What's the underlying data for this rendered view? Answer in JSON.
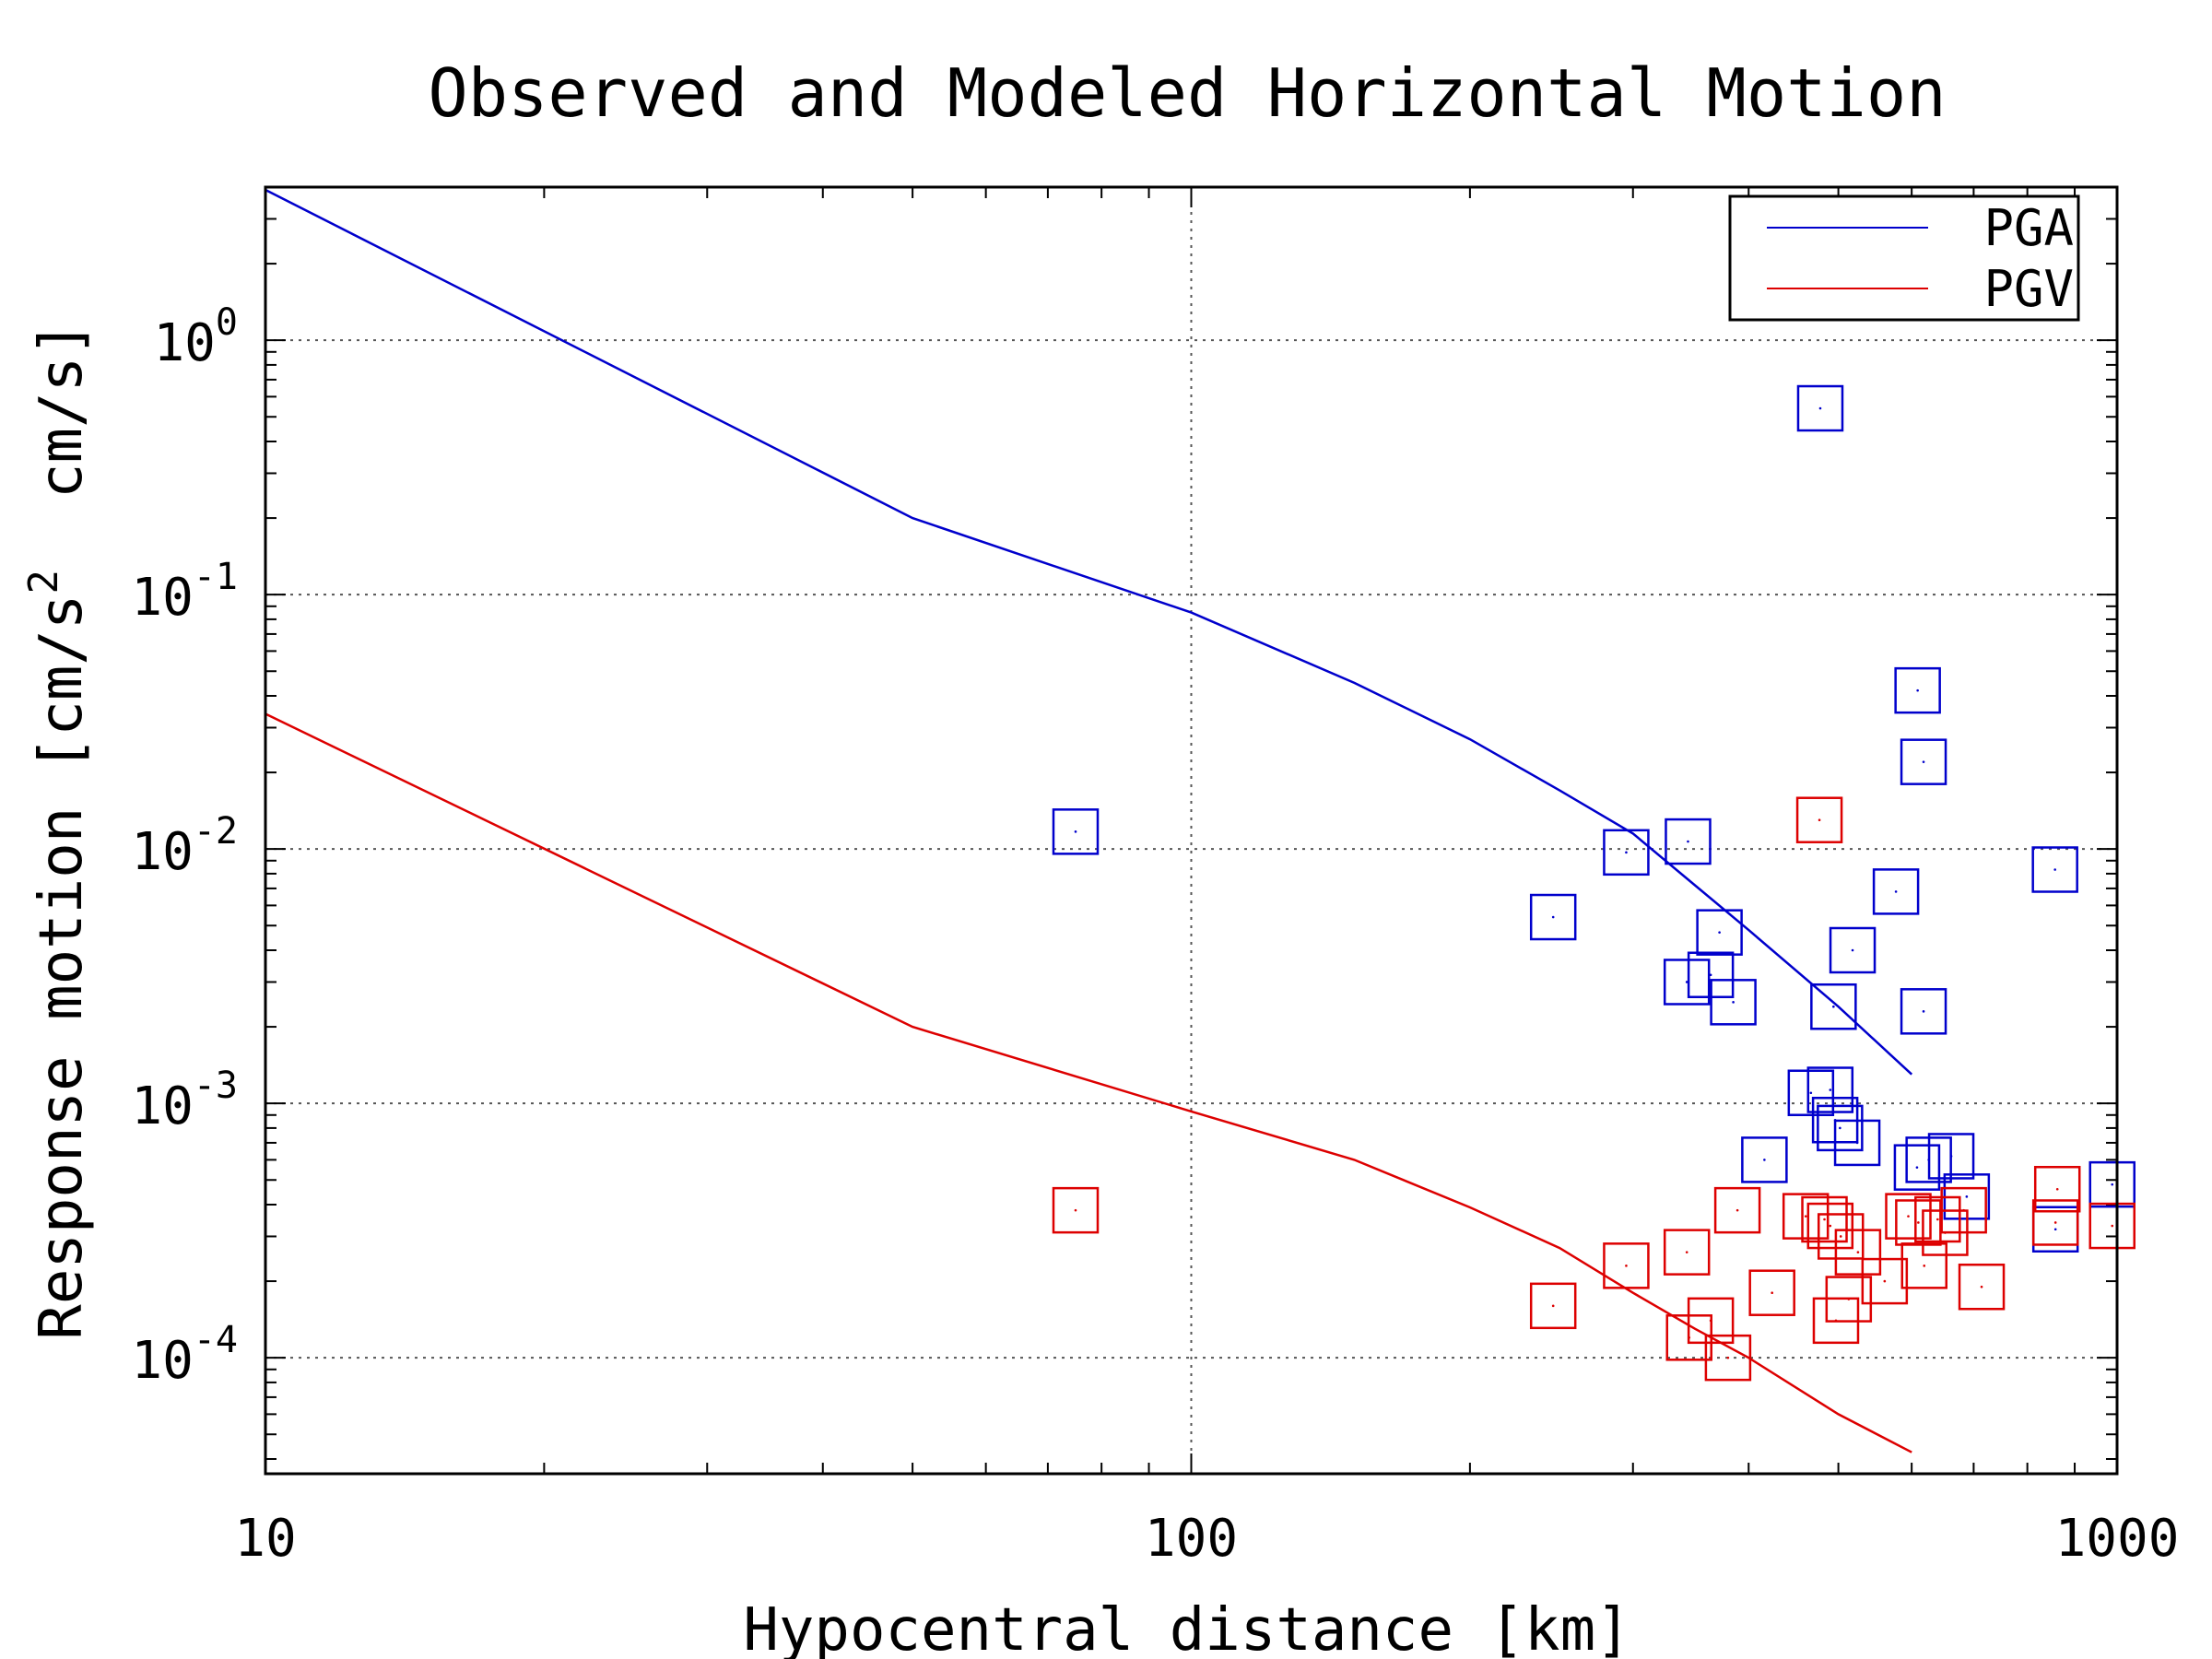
{
  "chart_data": {
    "type": "scatter",
    "title": "Observed and Modeled Horizontal Motion",
    "xlabel": "Hypocentral distance [km]",
    "ylabel_parts": {
      "before": "Response motion [cm/s",
      "sup": "2",
      "after": "  cm/s]"
    },
    "x_scale": "log",
    "y_scale": "log",
    "xlim": [
      10,
      1000
    ],
    "ylim": [
      3.5e-05,
      4.0
    ],
    "x_ticks": [
      {
        "value": 10,
        "label": "10"
      },
      {
        "value": 100,
        "label": "100"
      },
      {
        "value": 1000,
        "label": "1000"
      }
    ],
    "y_ticks": [
      {
        "value": 0.0001,
        "base": "10",
        "exp": "-4"
      },
      {
        "value": 0.001,
        "base": "10",
        "exp": "-3"
      },
      {
        "value": 0.01,
        "base": "10",
        "exp": "-2"
      },
      {
        "value": 0.1,
        "base": "10",
        "exp": "-1"
      },
      {
        "value": 1,
        "base": "10",
        "exp": "0"
      }
    ],
    "grid": true,
    "legend_position": "top-right",
    "series": [
      {
        "name": "PGA",
        "color": "#0000cc",
        "curve": [
          [
            10,
            3.9
          ],
          [
            50,
            0.2
          ],
          [
            100,
            0.085
          ],
          [
            150,
            0.045
          ],
          [
            200,
            0.027
          ],
          [
            250,
            0.017
          ],
          [
            300,
            0.0115
          ],
          [
            350,
            0.0072
          ],
          [
            400,
            0.0048
          ],
          [
            500,
            0.0024
          ],
          [
            600,
            0.0013
          ]
        ],
        "points": [
          [
            75,
            0.0117
          ],
          [
            246,
            0.0054
          ],
          [
            295,
            0.0097
          ],
          [
            344,
            0.0107
          ],
          [
            343,
            0.003
          ],
          [
            364,
            0.0032
          ],
          [
            372,
            0.0047
          ],
          [
            385,
            0.0025
          ],
          [
            416,
            0.0006
          ],
          [
            467,
            0.0011
          ],
          [
            490,
            0.00113
          ],
          [
            478,
            0.54
          ],
          [
            494,
            0.0024
          ],
          [
            496,
            0.00086
          ],
          [
            502,
            0.0008
          ],
          [
            518,
            0.004
          ],
          [
            524,
            0.0007
          ],
          [
            577,
            0.0068
          ],
          [
            609,
            0.042
          ],
          [
            618,
            0.022
          ],
          [
            618,
            0.0023
          ],
          [
            608,
            0.00056
          ],
          [
            626,
            0.0006
          ],
          [
            662,
            0.00062
          ],
          [
            688,
            0.00043
          ],
          [
            857,
            0.0083
          ],
          [
            858,
            0.00032
          ],
          [
            988,
            0.00048
          ]
        ]
      },
      {
        "name": "PGV",
        "color": "#dd0000",
        "curve": [
          [
            10,
            0.034
          ],
          [
            50,
            0.002
          ],
          [
            100,
            0.00093
          ],
          [
            150,
            0.0006
          ],
          [
            200,
            0.00039
          ],
          [
            250,
            0.00027
          ],
          [
            300,
            0.00018
          ],
          [
            350,
            0.00013
          ],
          [
            400,
            0.0001
          ],
          [
            500,
            6e-05
          ],
          [
            600,
            4.25e-05
          ]
        ],
        "points": [
          [
            75,
            0.00038
          ],
          [
            246,
            0.00016
          ],
          [
            295,
            0.00023
          ],
          [
            343,
            0.00026
          ],
          [
            345,
            0.00012
          ],
          [
            364,
            0.00014
          ],
          [
            380,
            0.0001
          ],
          [
            389,
            0.00038
          ],
          [
            424,
            0.00018
          ],
          [
            461,
            0.00036
          ],
          [
            477,
            0.013
          ],
          [
            483,
            0.00035
          ],
          [
            490,
            0.00033
          ],
          [
            497,
            0.00014
          ],
          [
            503,
            0.0003
          ],
          [
            513,
            0.00017
          ],
          [
            525,
            0.00026
          ],
          [
            561,
            0.0002
          ],
          [
            595,
            0.00036
          ],
          [
            610,
            0.00034
          ],
          [
            619,
            0.00023
          ],
          [
            640,
            0.00035
          ],
          [
            652,
            0.00031
          ],
          [
            683,
            0.00038
          ],
          [
            714,
            0.00019
          ],
          [
            862,
            0.00046
          ],
          [
            858,
            0.00034
          ],
          [
            988,
            0.00033
          ]
        ]
      }
    ]
  }
}
